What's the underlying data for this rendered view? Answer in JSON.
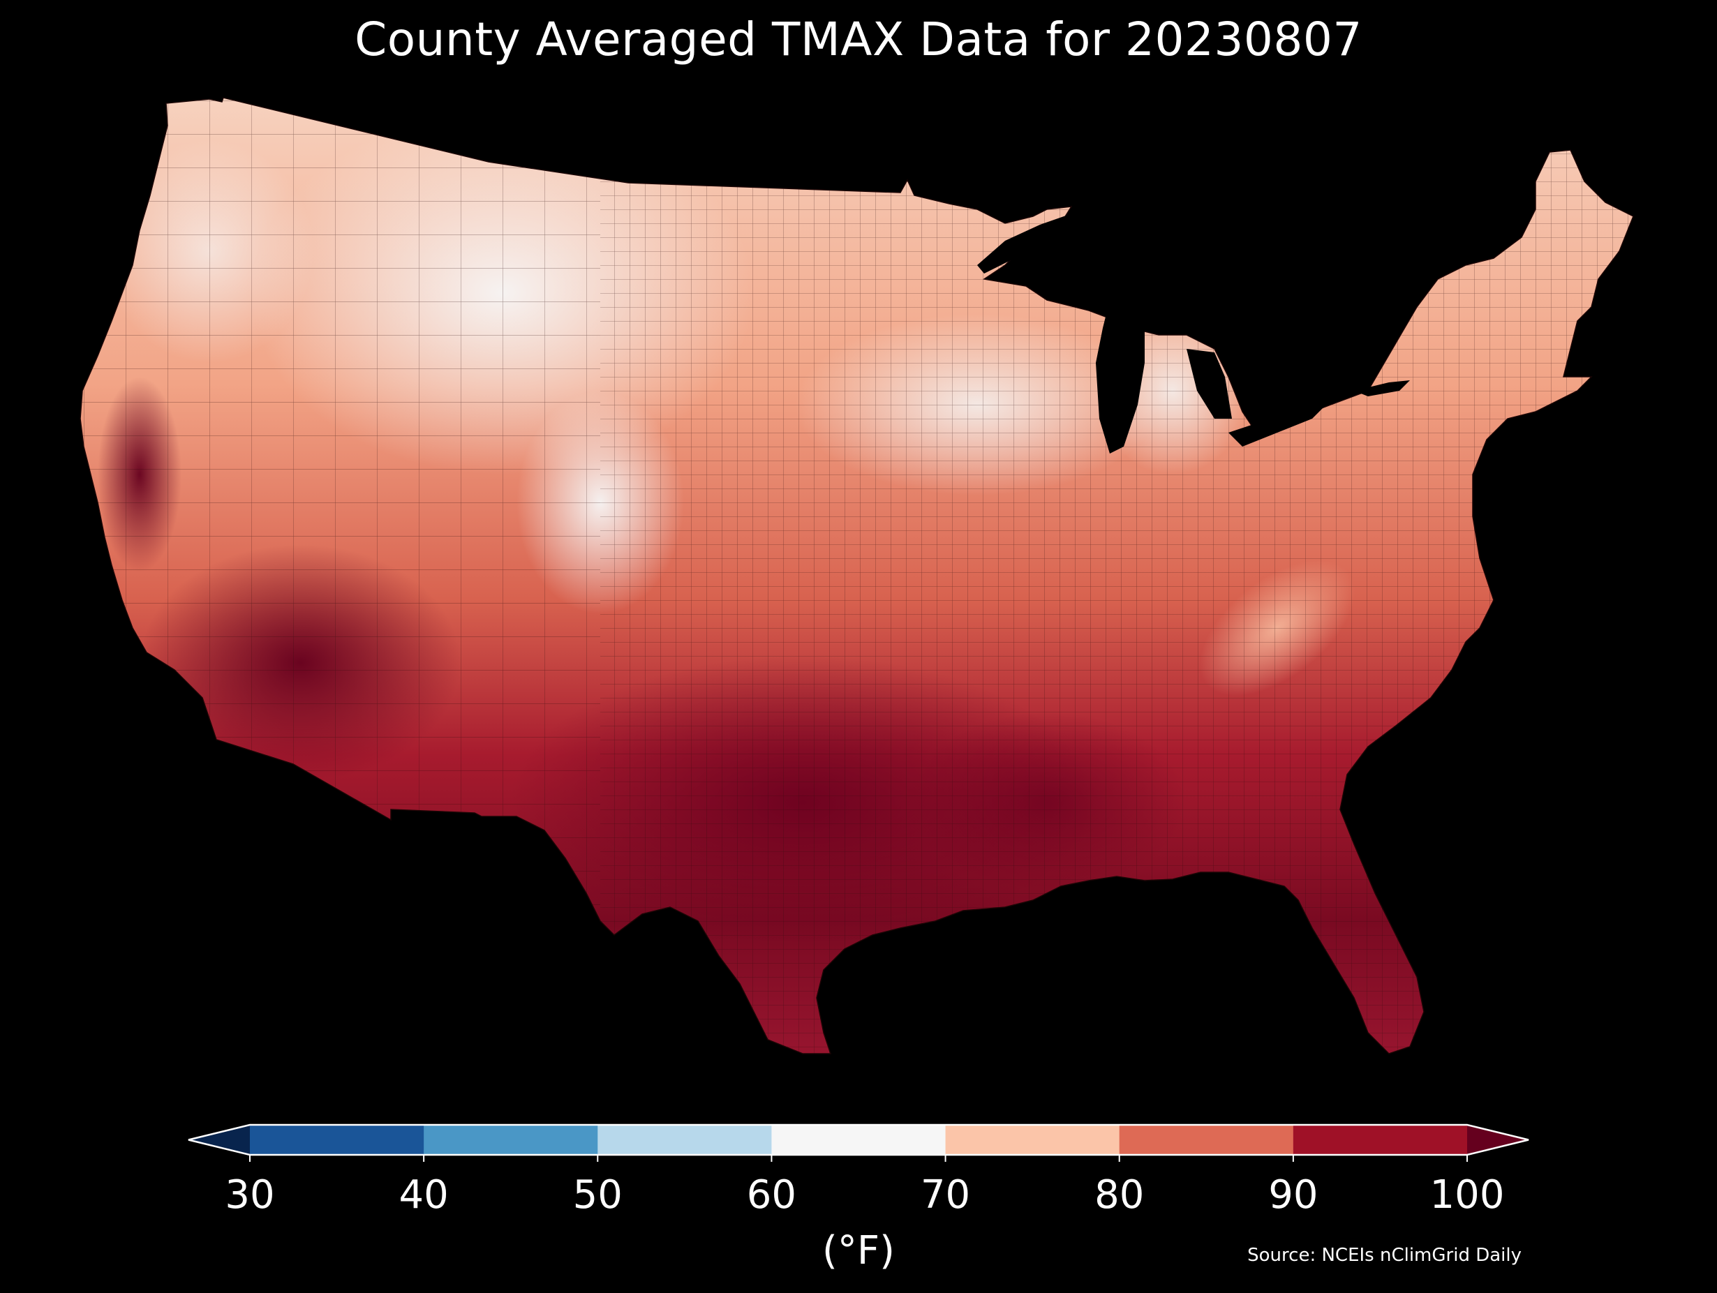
{
  "title": "County Averaged TMAX Data for 20230807",
  "colorbar": {
    "units": "(°F)",
    "ticks": [
      "30",
      "40",
      "50",
      "60",
      "70",
      "80",
      "90",
      "100"
    ],
    "bins": [
      {
        "range": "<30",
        "color": "#08244d"
      },
      {
        "range": "30-40",
        "color": "#1a5598"
      },
      {
        "range": "40-50",
        "color": "#4a97c6"
      },
      {
        "range": "50-60",
        "color": "#b7d8eb"
      },
      {
        "range": "60-70",
        "color": "#f6f6f6"
      },
      {
        "range": "70-80",
        "color": "#fbc5a9"
      },
      {
        "range": "80-90",
        "color": "#de6a55"
      },
      {
        "range": "90-100",
        "color": "#9f1127"
      },
      {
        "range": ">100",
        "color": "#65001e"
      }
    ]
  },
  "source": "Source: NCEIs nClimGrid Daily",
  "map": {
    "region": "Contiguous United States, county-level",
    "water_color": "#000000",
    "county_border_color": "#222222"
  }
}
